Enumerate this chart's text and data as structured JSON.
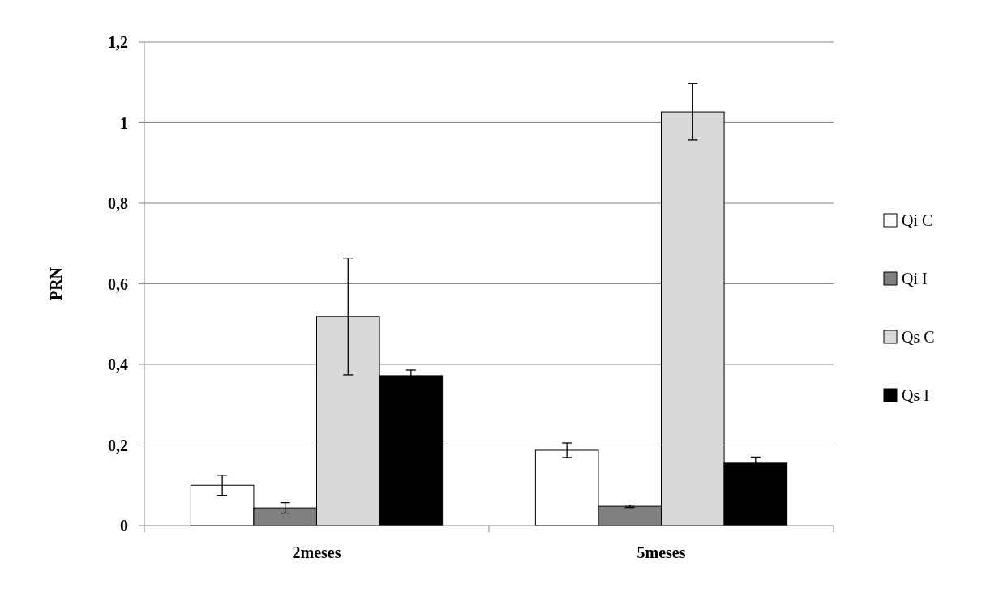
{
  "chart_data": {
    "type": "bar",
    "ylabel": "PRN",
    "categories": [
      "2meses",
      "5meses"
    ],
    "series": [
      {
        "name": "Qi C",
        "color": "#ffffff",
        "values": [
          0.1,
          0.187
        ],
        "errors": [
          0.025,
          0.018
        ]
      },
      {
        "name": "Qi I",
        "color": "#808080",
        "values": [
          0.044,
          0.048
        ],
        "errors": [
          0.013,
          0.003
        ]
      },
      {
        "name": "Qs C",
        "color": "#d9d9d9",
        "values": [
          0.519,
          1.027
        ],
        "errors": [
          0.145,
          0.07
        ]
      },
      {
        "name": "Qs I",
        "color": "#000000",
        "values": [
          0.372,
          0.155
        ],
        "errors": [
          0.014,
          0.015
        ]
      }
    ],
    "ylim": [
      0,
      1.2
    ],
    "yticks": [
      0,
      {
        "value": 0.2,
        "label": "0,2"
      },
      {
        "value": 0.4,
        "label": "0,4"
      },
      {
        "value": 0.6,
        "label": "0,6"
      },
      {
        "value": 0.8,
        "label": "0,8"
      },
      1,
      {
        "value": 1.2,
        "label": "1,2"
      }
    ],
    "grid": "y",
    "legend": "right"
  }
}
